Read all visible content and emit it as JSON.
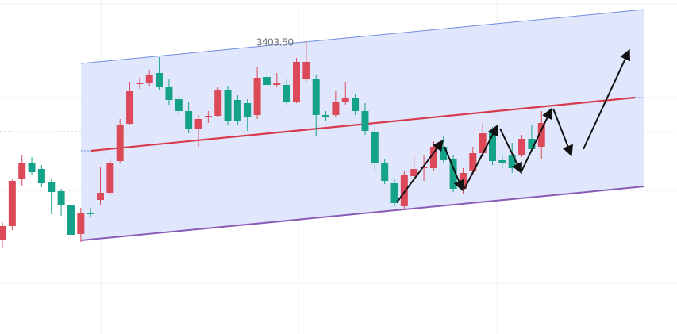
{
  "chart_data": {
    "type": "candlestick",
    "categories": [
      null,
      null,
      null,
      null,
      null,
      null,
      null,
      null,
      null,
      null,
      null,
      null,
      null,
      null,
      null,
      null,
      null,
      null,
      null,
      null,
      null,
      null,
      null,
      null,
      null,
      null,
      null,
      null,
      null,
      null,
      null,
      null,
      null,
      null,
      null,
      null,
      null,
      null,
      null,
      null,
      null,
      null,
      null,
      null,
      null,
      null,
      null,
      null,
      null,
      null,
      null,
      null,
      null,
      null,
      null,
      null
    ],
    "open": [
      3378.4,
      3380.2,
      3386.2,
      3388.2,
      3387.4,
      3385.7,
      3384.6,
      3382.8,
      3379.2,
      3381.9,
      3383.5,
      3384.4,
      3388.4,
      3393.1,
      3398.1,
      3398.2,
      3399.5,
      3397.7,
      3396.2,
      3394.7,
      3392.5,
      3393.9,
      3394.1,
      3397.3,
      3396.1,
      3395.7,
      3394.2,
      3399.0,
      3398.0,
      3398.0,
      3395.9,
      3398.7,
      3398.7,
      3394.2,
      3394.2,
      3395.9,
      3396.3,
      3394.7,
      3392.1,
      3388.2,
      3385.6,
      3382.7,
      3386.5,
      3387.5,
      3387.5,
      3390.2,
      3388.7,
      3384.9,
      3387.2,
      3389.4,
      3392.2,
      3388.5,
      3389.1,
      3389.2,
      3391.2,
      3390.2
    ],
    "high": [
      3380.7,
      3386.1,
      3389.2,
      3388.9,
      3387.9,
      3386.2,
      3384.9,
      3385.2,
      3382.5,
      3382.5,
      3387.7,
      3388.7,
      3393.7,
      3398.4,
      3398.9,
      3399.9,
      3401.5,
      3398.7,
      3396.9,
      3395.9,
      3394.2,
      3394.7,
      3397.7,
      3397.9,
      3396.7,
      3396.2,
      3400.2,
      3399.7,
      3399.5,
      3398.7,
      3401.4,
      3403.5,
      3399.2,
      3394.7,
      3397.2,
      3398.4,
      3396.9,
      3395.7,
      3392.7,
      3388.7,
      3386.1,
      3387.2,
      3389.2,
      3389.2,
      3390.9,
      3391.5,
      3389.2,
      3387.5,
      3390.2,
      3393.2,
      3392.7,
      3389.2,
      3390.7,
      3391.7,
      3392.9,
      3394.7
    ],
    "low": [
      3377.5,
      3379.7,
      3385.2,
      3386.7,
      3385.1,
      3381.7,
      3381.5,
      3378.7,
      3378.2,
      3381.3,
      3382.9,
      3384.2,
      3388.2,
      3392.9,
      3397.5,
      3397.9,
      3397.4,
      3395.5,
      3394.2,
      3391.9,
      3390.2,
      3393.2,
      3393.9,
      3392.9,
      3392.9,
      3392.2,
      3393.7,
      3397.7,
      3397.7,
      3395.5,
      3395.7,
      3398.4,
      3391.5,
      3393.5,
      3393.9,
      3395.5,
      3394.2,
      3391.7,
      3386.9,
      3385.5,
      3382.7,
      3382.4,
      3385.9,
      3385.9,
      3387.2,
      3388.2,
      3384.5,
      3384.2,
      3386.7,
      3389.0,
      3387.9,
      3387.5,
      3386.9,
      3388.9,
      3389.5,
      3388.7
    ],
    "close": [
      3380.2,
      3385.9,
      3388.2,
      3387.0,
      3385.6,
      3384.5,
      3382.8,
      3379.1,
      3381.9,
      3381.7,
      3384.4,
      3388.2,
      3393.0,
      3397.2,
      3398.3,
      3399.3,
      3397.7,
      3396.1,
      3394.7,
      3392.5,
      3393.7,
      3394.1,
      3397.3,
      3393.5,
      3393.5,
      3394.0,
      3398.9,
      3398.0,
      3398.3,
      3395.9,
      3400.9,
      3400.9,
      3394.2,
      3393.9,
      3395.9,
      3396.3,
      3394.7,
      3392.2,
      3388.2,
      3385.9,
      3383.1,
      3386.7,
      3387.4,
      3387.7,
      3390.2,
      3388.5,
      3384.9,
      3386.9,
      3389.4,
      3391.9,
      3388.4,
      3388.2,
      3387.5,
      3391.2,
      3389.9,
      3393.2
    ],
    "ylim": [
      3366.6,
      3408.7
    ],
    "up_color": "#dc4a5a",
    "down_color": "#14a388",
    "annotation": "3403.50"
  }
}
